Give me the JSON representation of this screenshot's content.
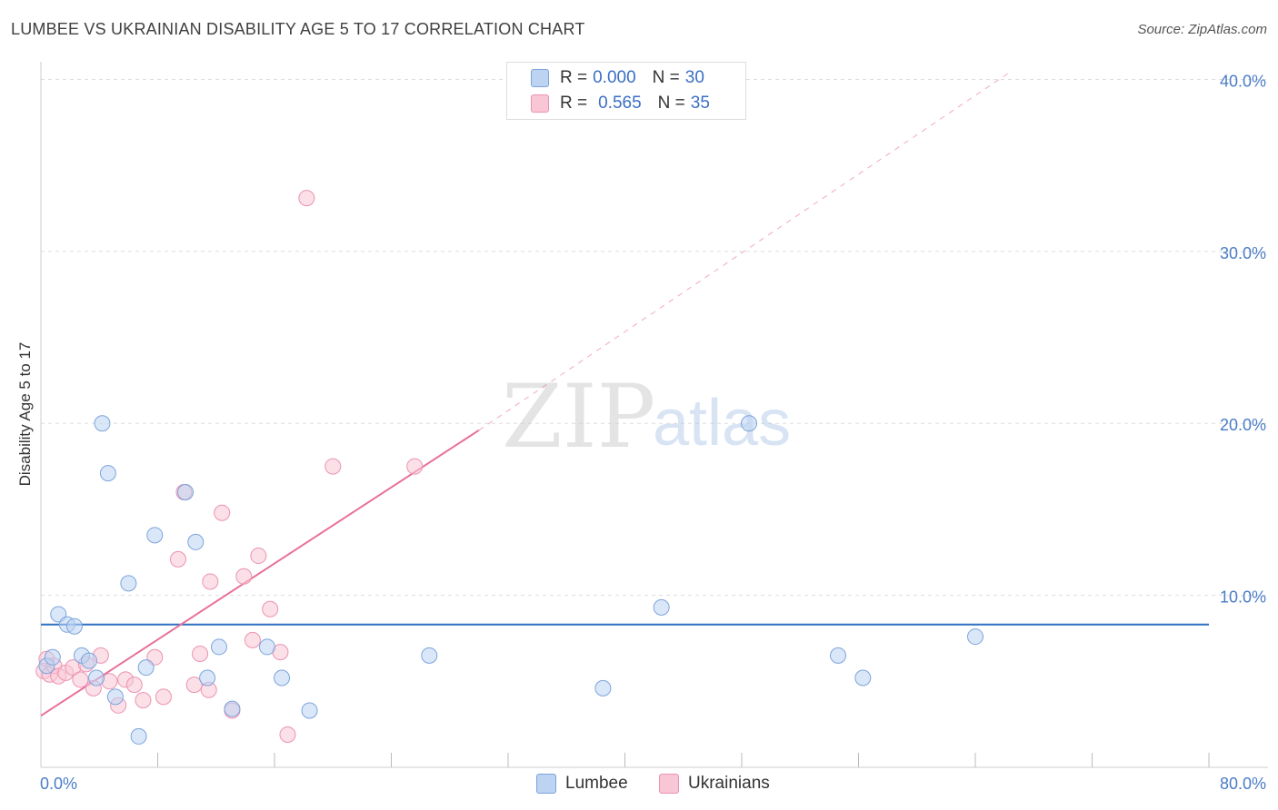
{
  "title": "LUMBEE VS UKRAINIAN DISABILITY AGE 5 TO 17 CORRELATION CHART",
  "source": "Source: ZipAtlas.com",
  "watermark": {
    "zip": "ZIP",
    "atlas": "atlas"
  },
  "legend": {
    "rows": [
      {
        "r_label": "R =",
        "r_value": "0.000",
        "n_label": "N =",
        "n_value": "30"
      },
      {
        "r_label": "R =",
        "r_value": "0.565",
        "n_label": "N =",
        "n_value": "35"
      }
    ]
  },
  "bottom_legend": {
    "lumbee": "Lumbee",
    "ukrainians": "Ukrainians"
  },
  "colors": {
    "lumbee_fill": "#bcd3f2",
    "lumbee_stroke": "#7da4dc",
    "lumbee_line": "#2f6fc4",
    "ukr_fill": "#f9c6d6",
    "ukr_stroke": "#eb93b1",
    "ukr_line": "#e8709a",
    "tick_text": "#4a7cc7",
    "grid": "#dddddd"
  },
  "chart_data": {
    "type": "scatter",
    "title": "LUMBEE VS UKRAINIAN DISABILITY AGE 5 TO 17 CORRELATION CHART",
    "xlabel": "",
    "ylabel": "Disability Age 5 to 17",
    "xlim": [
      0,
      80
    ],
    "ylim": [
      0,
      40.5
    ],
    "x_tick_labels": [
      {
        "value": 0,
        "label": "0.0%"
      },
      {
        "value": 80,
        "label": "80.0%"
      }
    ],
    "y_tick_labels": [
      {
        "value": 10,
        "label": "10.0%"
      },
      {
        "value": 20,
        "label": "20.0%"
      },
      {
        "value": 30,
        "label": "30.0%"
      },
      {
        "value": 40,
        "label": "40.0%"
      }
    ],
    "x_minor_ticks": [
      8,
      16,
      24,
      32,
      40,
      48,
      56,
      64,
      72,
      80
    ],
    "series": [
      {
        "name": "Lumbee",
        "r": 0.0,
        "n": 30,
        "points": [
          [
            0.4,
            5.9
          ],
          [
            0.8,
            6.4
          ],
          [
            1.2,
            8.9
          ],
          [
            1.8,
            8.3
          ],
          [
            2.3,
            8.2
          ],
          [
            2.8,
            6.5
          ],
          [
            3.3,
            6.2
          ],
          [
            3.8,
            5.2
          ],
          [
            4.2,
            20.0
          ],
          [
            4.6,
            17.1
          ],
          [
            5.1,
            4.1
          ],
          [
            6.0,
            10.7
          ],
          [
            6.7,
            1.8
          ],
          [
            7.2,
            5.8
          ],
          [
            7.8,
            13.5
          ],
          [
            9.9,
            16.0
          ],
          [
            10.6,
            13.1
          ],
          [
            11.4,
            5.2
          ],
          [
            12.2,
            7.0
          ],
          [
            13.1,
            3.4
          ],
          [
            15.5,
            7.0
          ],
          [
            16.5,
            5.2
          ],
          [
            18.4,
            3.3
          ],
          [
            26.6,
            6.5
          ],
          [
            38.5,
            4.6
          ],
          [
            42.5,
            9.3
          ],
          [
            48.5,
            20.0
          ],
          [
            54.6,
            6.5
          ],
          [
            56.3,
            5.2
          ],
          [
            64.0,
            7.6
          ]
        ],
        "trend": {
          "x0": 0,
          "y0": 8.3,
          "x1": 80,
          "y1": 8.3
        }
      },
      {
        "name": "Ukrainians",
        "r": 0.565,
        "n": 35,
        "points": [
          [
            0.2,
            5.6
          ],
          [
            0.4,
            6.3
          ],
          [
            0.6,
            5.4
          ],
          [
            0.9,
            5.9
          ],
          [
            1.2,
            5.3
          ],
          [
            1.7,
            5.5
          ],
          [
            2.2,
            5.8
          ],
          [
            2.7,
            5.1
          ],
          [
            3.1,
            6.0
          ],
          [
            3.6,
            4.6
          ],
          [
            4.1,
            6.5
          ],
          [
            4.7,
            5.0
          ],
          [
            5.3,
            3.6
          ],
          [
            5.8,
            5.1
          ],
          [
            6.4,
            4.8
          ],
          [
            7.0,
            3.9
          ],
          [
            7.8,
            6.4
          ],
          [
            8.4,
            4.1
          ],
          [
            9.4,
            12.1
          ],
          [
            9.8,
            16.0
          ],
          [
            10.5,
            4.8
          ],
          [
            10.9,
            6.6
          ],
          [
            11.6,
            10.8
          ],
          [
            12.4,
            14.8
          ],
          [
            13.1,
            3.3
          ],
          [
            13.9,
            11.1
          ],
          [
            14.5,
            7.4
          ],
          [
            14.9,
            12.3
          ],
          [
            15.7,
            9.2
          ],
          [
            16.4,
            6.7
          ],
          [
            16.9,
            1.9
          ],
          [
            18.2,
            33.1
          ],
          [
            20.0,
            17.5
          ],
          [
            25.6,
            17.5
          ],
          [
            11.5,
            4.5
          ]
        ],
        "trend": {
          "x0": 0,
          "y0": 3.0,
          "x1": 30.0,
          "y1": 19.6
        },
        "trend_extension": {
          "x0": 30.0,
          "y0": 19.6,
          "x1": 66.5,
          "y1": 40.5
        }
      }
    ]
  }
}
